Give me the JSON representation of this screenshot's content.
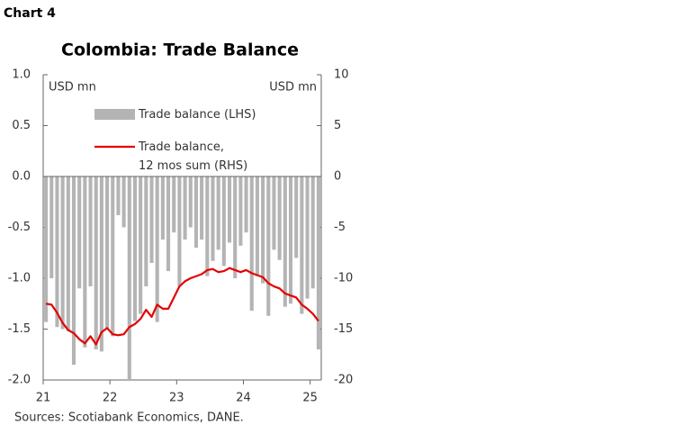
{
  "chart_data": {
    "type": "bar",
    "chart_label": "Chart 4",
    "title": "Colombia: Trade Balance",
    "y_unit_label": "USD mn",
    "y2_unit_label": "USD mn",
    "source": "Sources: Scotiabank Economics, DANE.",
    "categories": [
      "21",
      null,
      null,
      null,
      null,
      null,
      null,
      null,
      null,
      null,
      null,
      null,
      "22",
      null,
      null,
      null,
      null,
      null,
      null,
      null,
      null,
      null,
      null,
      null,
      "23",
      null,
      null,
      null,
      null,
      null,
      null,
      null,
      null,
      null,
      null,
      null,
      "24",
      null,
      null,
      null,
      null,
      null,
      null,
      null,
      null,
      null,
      null,
      null,
      "25",
      null
    ],
    "series": [
      {
        "name": "Trade balance (LHS)",
        "type": "bar",
        "color": "#b4b4b4",
        "values": [
          -1.43,
          -1.0,
          -1.48,
          -1.5,
          -1.52,
          -1.85,
          -1.1,
          -1.68,
          -1.08,
          -1.7,
          -1.72,
          -1.5,
          -1.57,
          -0.38,
          -0.5,
          -2.0,
          -1.42,
          -1.35,
          -1.08,
          -0.85,
          -1.43,
          -0.62,
          -0.93,
          -0.55,
          -1.08,
          -0.62,
          -0.5,
          -0.7,
          -0.62,
          -0.98,
          -0.83,
          -0.72,
          -0.88,
          -0.65,
          -1.0,
          -0.68,
          -0.55,
          -1.32,
          -0.98,
          -1.05,
          -1.37,
          -0.72,
          -0.82,
          -1.28,
          -1.25,
          -0.8,
          -1.35,
          -1.2,
          -1.1,
          -1.7
        ]
      },
      {
        "name": "Trade balance,\n12 mos sum (RHS)",
        "type": "line",
        "axis": "y2",
        "color": "#e60000",
        "values": [
          -12.5,
          -12.6,
          -13.4,
          -14.4,
          -15.1,
          -15.4,
          -16.0,
          -16.4,
          -15.7,
          -16.5,
          -15.3,
          -14.9,
          -15.5,
          -15.6,
          -15.5,
          -14.8,
          -14.5,
          -14.0,
          -13.1,
          -13.8,
          -12.6,
          -13.0,
          -13.0,
          -11.9,
          -10.8,
          -10.3,
          -10.0,
          -9.8,
          -9.6,
          -9.2,
          -9.1,
          -9.4,
          -9.3,
          -9.0,
          -9.2,
          -9.4,
          -9.2,
          -9.5,
          -9.7,
          -9.9,
          -10.5,
          -10.8,
          -11.0,
          -11.5,
          -11.7,
          -11.9,
          -12.6,
          -13.0,
          -13.5,
          -14.2
        ]
      }
    ],
    "ylim": [
      -2,
      1
    ],
    "yticks": [
      {
        "value": 1,
        "label": "1.0"
      },
      {
        "value": 0.5,
        "label": "0.5"
      },
      {
        "value": 0,
        "label": "0.0"
      },
      {
        "value": -0.5,
        "label": "-0.5"
      },
      {
        "value": -1,
        "label": "-1.0"
      },
      {
        "value": -1.5,
        "label": "-1.5"
      },
      {
        "value": -2,
        "label": "-2.0"
      }
    ],
    "y2lim": [
      -20,
      10
    ],
    "y2ticks": [
      10,
      5,
      0,
      -5,
      -10,
      -15,
      -20
    ]
  }
}
